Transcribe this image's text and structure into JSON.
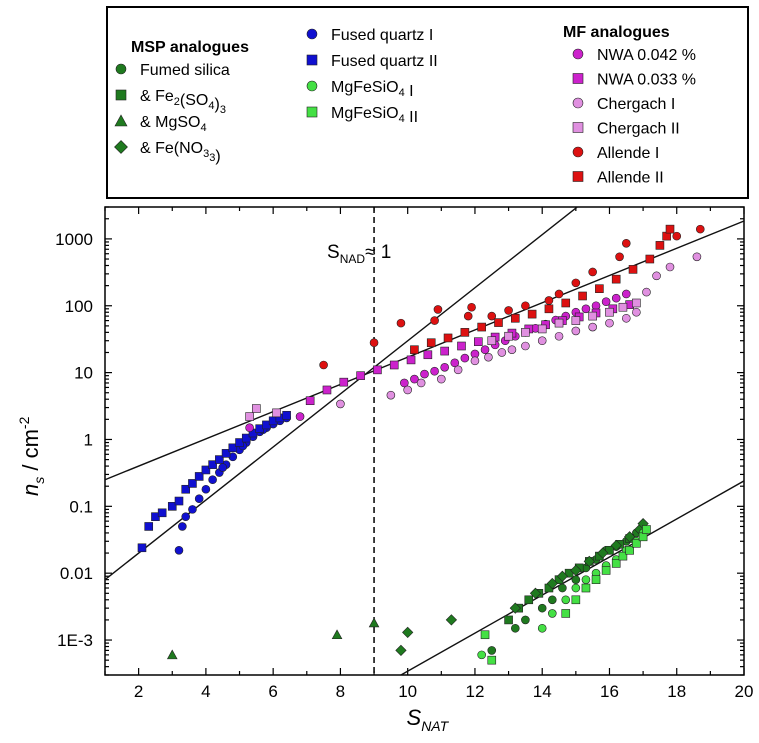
{
  "chart_data": {
    "type": "scatter",
    "xlabel": "S",
    "xlabel_sub": "NAT",
    "ylabel_main": "n",
    "ylabel_sub": "s",
    "ylabel_unit": " / cm",
    "ylabel_sup": "-2",
    "xlim": [
      1,
      20
    ],
    "ylim": [
      0.0003,
      3000
    ],
    "y_scale": "log",
    "x_ticks": [
      2,
      4,
      6,
      8,
      10,
      12,
      14,
      16,
      18,
      20
    ],
    "y_ticks": [
      {
        "value": 1000,
        "label": "1000"
      },
      {
        "value": 100,
        "label": "100"
      },
      {
        "value": 10,
        "label": "10"
      },
      {
        "value": 1,
        "label": "1"
      },
      {
        "value": 0.1,
        "label": "0.1"
      },
      {
        "value": 0.01,
        "label": "0.01"
      },
      {
        "value": 0.001,
        "label": "1E-3"
      }
    ],
    "annotation": {
      "prefix": "S",
      "sub": "NAD",
      "suffix": "≈ 1",
      "x": 9
    },
    "fit_lines": [
      {
        "x": [
          1,
          16
        ],
        "y": [
          0.008,
          7200
        ]
      },
      {
        "x": [
          1,
          20
        ],
        "y": [
          0.25,
          1850
        ]
      },
      {
        "x": [
          9.8,
          20
        ],
        "y": [
          0.0003,
          0.24
        ]
      }
    ],
    "legend": {
      "groups": [
        {
          "title": "MSP analogues",
          "entries": [
            {
              "label": "Fumed silica",
              "marker": "circle",
              "color": "#1f7a1f"
            },
            {
              "label": "& Fe",
              "sub1": "2",
              "mid": "(SO",
              "sub2": "4",
              "end": ")",
              "sub3": "3",
              "marker": "square",
              "color": "#1f7a1f"
            },
            {
              "label": "& MgSO",
              "sub1": "4",
              "marker": "triangle",
              "color": "#1f7a1f"
            },
            {
              "label": "& Fe(NO",
              "sub1": "3",
              "end": ")",
              "sub2": "3",
              "marker": "diamond",
              "color": "#1f7a1f"
            }
          ]
        },
        {
          "title": "",
          "entries": [
            {
              "label": "Fused quartz I",
              "marker": "circle",
              "color": "#1010d0"
            },
            {
              "label": "Fused quartz II",
              "marker": "square",
              "color": "#1010d0"
            },
            {
              "label": "MgFeSiO",
              "sub1": "4",
              "end": " I",
              "marker": "circle",
              "color": "#44e044"
            },
            {
              "label": "MgFeSiO",
              "sub1": "4",
              "end": " II",
              "marker": "square",
              "color": "#44e044"
            }
          ]
        },
        {
          "title": "MF analogues",
          "entries": [
            {
              "label": "NWA 0.042 %",
              "marker": "circle",
              "color": "#cc22cc"
            },
            {
              "label": "NWA 0.033 %",
              "marker": "square",
              "color": "#cc22cc"
            },
            {
              "label": "Chergach I",
              "marker": "circle",
              "color": "#e090e0"
            },
            {
              "label": "Chergach II",
              "marker": "square",
              "color": "#e090e0"
            },
            {
              "label": "Allende I",
              "marker": "circle",
              "color": "#dd1111"
            },
            {
              "label": "Allende II",
              "marker": "square",
              "color": "#dd1111"
            }
          ]
        }
      ]
    },
    "series": [
      {
        "marker": "circle",
        "color": "#1010d0",
        "points": [
          [
            3.2,
            0.022
          ],
          [
            3.3,
            0.05
          ],
          [
            3.4,
            0.07
          ],
          [
            3.6,
            0.09
          ],
          [
            3.8,
            0.13
          ],
          [
            4.0,
            0.18
          ],
          [
            4.2,
            0.25
          ],
          [
            4.4,
            0.32
          ],
          [
            4.6,
            0.42
          ],
          [
            4.8,
            0.55
          ],
          [
            5.0,
            0.7
          ],
          [
            5.2,
            0.9
          ],
          [
            5.4,
            1.1
          ],
          [
            5.6,
            1.3
          ],
          [
            5.8,
            1.5
          ],
          [
            6.0,
            1.7
          ],
          [
            6.2,
            1.9
          ],
          [
            6.4,
            2.1
          ],
          [
            4.5,
            0.38
          ],
          [
            5.1,
            0.8
          ],
          [
            5.7,
            1.4
          ]
        ]
      },
      {
        "marker": "square",
        "color": "#1010d0",
        "points": [
          [
            2.1,
            0.024
          ],
          [
            2.3,
            0.05
          ],
          [
            2.5,
            0.07
          ],
          [
            2.7,
            0.08
          ],
          [
            3.0,
            0.1
          ],
          [
            3.2,
            0.12
          ],
          [
            3.4,
            0.18
          ],
          [
            3.6,
            0.22
          ],
          [
            3.8,
            0.28
          ],
          [
            4.0,
            0.35
          ],
          [
            4.2,
            0.42
          ],
          [
            4.4,
            0.5
          ],
          [
            4.6,
            0.62
          ],
          [
            4.8,
            0.75
          ],
          [
            5.0,
            0.9
          ],
          [
            5.2,
            1.05
          ],
          [
            5.4,
            1.25
          ],
          [
            5.6,
            1.45
          ],
          [
            5.8,
            1.65
          ],
          [
            6.0,
            1.9
          ],
          [
            6.2,
            2.1
          ],
          [
            6.4,
            2.3
          ]
        ]
      },
      {
        "marker": "circle",
        "color": "#cc22cc",
        "points": [
          [
            5.3,
            1.5
          ],
          [
            6.8,
            2.2
          ],
          [
            9.9,
            7.0
          ],
          [
            10.2,
            8.0
          ],
          [
            10.5,
            9.5
          ],
          [
            10.8,
            10.5
          ],
          [
            11.1,
            12.0
          ],
          [
            11.4,
            14.0
          ],
          [
            11.7,
            16.5
          ],
          [
            12.0,
            19.0
          ],
          [
            12.3,
            22.0
          ],
          [
            12.6,
            26.0
          ],
          [
            12.9,
            30.0
          ],
          [
            13.2,
            35.0
          ],
          [
            13.5,
            40.0
          ],
          [
            13.8,
            46.0
          ],
          [
            14.1,
            53.0
          ],
          [
            14.4,
            61.0
          ],
          [
            14.7,
            70.0
          ],
          [
            15.0,
            80.0
          ],
          [
            15.3,
            90.0
          ],
          [
            15.6,
            100.0
          ],
          [
            15.9,
            115.0
          ],
          [
            16.2,
            130.0
          ],
          [
            16.5,
            150.0
          ]
        ]
      },
      {
        "marker": "square",
        "color": "#cc22cc",
        "points": [
          [
            7.1,
            3.8
          ],
          [
            7.6,
            5.5
          ],
          [
            8.1,
            7.2
          ],
          [
            8.6,
            9.0
          ],
          [
            9.1,
            11.0
          ],
          [
            9.6,
            13.0
          ],
          [
            10.1,
            15.5
          ],
          [
            10.6,
            18.5
          ],
          [
            11.1,
            21.0
          ],
          [
            11.6,
            25.0
          ],
          [
            12.1,
            29.0
          ],
          [
            12.6,
            34.0
          ],
          [
            13.1,
            39.0
          ],
          [
            13.6,
            45.0
          ],
          [
            14.1,
            52.0
          ],
          [
            14.6,
            60.0
          ],
          [
            15.1,
            68.0
          ],
          [
            15.6,
            78.0
          ],
          [
            16.1,
            90.0
          ],
          [
            16.6,
            104.0
          ]
        ]
      },
      {
        "marker": "circle",
        "color": "#e090e0",
        "points": [
          [
            8.0,
            3.4
          ],
          [
            9.5,
            4.6
          ],
          [
            10.0,
            5.5
          ],
          [
            10.4,
            7.0
          ],
          [
            11.0,
            8.0
          ],
          [
            11.5,
            11.0
          ],
          [
            12.0,
            15.0
          ],
          [
            12.4,
            17.0
          ],
          [
            12.8,
            20.0
          ],
          [
            13.1,
            22.0
          ],
          [
            13.5,
            25.0
          ],
          [
            14.0,
            30.0
          ],
          [
            14.5,
            35.0
          ],
          [
            15.0,
            42.0
          ],
          [
            15.5,
            48.0
          ],
          [
            16.0,
            55.0
          ],
          [
            16.5,
            65.0
          ],
          [
            16.8,
            80.0
          ],
          [
            17.1,
            160.0
          ],
          [
            17.4,
            280.0
          ],
          [
            17.8,
            380.0
          ],
          [
            18.6,
            540.0
          ]
        ]
      },
      {
        "marker": "square",
        "color": "#e090e0",
        "points": [
          [
            5.3,
            2.2
          ],
          [
            5.5,
            2.9
          ],
          [
            6.1,
            2.5
          ],
          [
            12.5,
            30.0
          ],
          [
            13.0,
            35.0
          ],
          [
            13.5,
            40.0
          ],
          [
            14.0,
            45.0
          ],
          [
            14.5,
            55.0
          ],
          [
            15.0,
            60.0
          ],
          [
            15.5,
            70.0
          ],
          [
            16.0,
            80.0
          ],
          [
            16.4,
            95.0
          ],
          [
            16.8,
            110.0
          ]
        ]
      },
      {
        "marker": "circle",
        "color": "#dd1111",
        "points": [
          [
            7.5,
            13.0
          ],
          [
            9.0,
            28.0
          ],
          [
            9.8,
            55.0
          ],
          [
            10.8,
            60.0
          ],
          [
            10.9,
            88.0
          ],
          [
            11.8,
            70.0
          ],
          [
            11.9,
            95.0
          ],
          [
            12.5,
            70.0
          ],
          [
            13.0,
            85.0
          ],
          [
            13.5,
            100.0
          ],
          [
            14.2,
            120.0
          ],
          [
            14.5,
            150.0
          ],
          [
            15.0,
            220.0
          ],
          [
            15.5,
            320.0
          ],
          [
            16.3,
            540.0
          ],
          [
            16.5,
            860.0
          ],
          [
            18.0,
            1100.0
          ],
          [
            18.7,
            1400.0
          ]
        ]
      },
      {
        "marker": "square",
        "color": "#dd1111",
        "points": [
          [
            10.2,
            22.0
          ],
          [
            10.7,
            28.0
          ],
          [
            11.2,
            33.0
          ],
          [
            11.7,
            40.0
          ],
          [
            12.2,
            48.0
          ],
          [
            12.7,
            56.0
          ],
          [
            13.2,
            65.0
          ],
          [
            13.7,
            75.0
          ],
          [
            14.2,
            90.0
          ],
          [
            14.7,
            110.0
          ],
          [
            15.2,
            140.0
          ],
          [
            15.7,
            180.0
          ],
          [
            16.2,
            250.0
          ],
          [
            16.7,
            350.0
          ],
          [
            17.2,
            500.0
          ],
          [
            17.5,
            800.0
          ],
          [
            17.7,
            1100.0
          ],
          [
            17.8,
            1400.0
          ]
        ]
      },
      {
        "marker": "circle",
        "color": "#1f7a1f",
        "points": [
          [
            12.5,
            0.0007
          ],
          [
            13.2,
            0.0015
          ],
          [
            13.5,
            0.002
          ],
          [
            14.0,
            0.003
          ],
          [
            14.3,
            0.004
          ],
          [
            14.6,
            0.006
          ],
          [
            15.0,
            0.008
          ],
          [
            15.3,
            0.012
          ],
          [
            15.6,
            0.016
          ],
          [
            15.9,
            0.022
          ],
          [
            16.2,
            0.025
          ],
          [
            16.5,
            0.03
          ],
          [
            16.8,
            0.04
          ]
        ]
      },
      {
        "marker": "square",
        "color": "#1f7a1f",
        "points": [
          [
            13.0,
            0.002
          ],
          [
            13.3,
            0.003
          ],
          [
            13.6,
            0.004
          ],
          [
            13.9,
            0.005
          ],
          [
            14.2,
            0.006
          ],
          [
            14.5,
            0.008
          ],
          [
            14.8,
            0.01
          ],
          [
            15.1,
            0.012
          ],
          [
            15.4,
            0.015
          ],
          [
            15.7,
            0.018
          ],
          [
            16.0,
            0.022
          ],
          [
            16.3,
            0.027
          ],
          [
            16.6,
            0.033
          ]
        ]
      },
      {
        "marker": "triangle",
        "color": "#1f7a1f",
        "points": [
          [
            3.0,
            0.0006
          ],
          [
            7.9,
            0.0012
          ],
          [
            9.0,
            0.0018
          ]
        ]
      },
      {
        "marker": "diamond",
        "color": "#1f7a1f",
        "points": [
          [
            9.8,
            0.0007
          ],
          [
            10.0,
            0.0013
          ],
          [
            11.3,
            0.002
          ],
          [
            13.2,
            0.003
          ],
          [
            13.8,
            0.005
          ],
          [
            14.3,
            0.007
          ],
          [
            14.6,
            0.009
          ],
          [
            15.0,
            0.011
          ],
          [
            15.4,
            0.015
          ],
          [
            15.8,
            0.02
          ],
          [
            16.2,
            0.026
          ],
          [
            16.6,
            0.035
          ],
          [
            16.9,
            0.045
          ],
          [
            17.0,
            0.055
          ]
        ]
      },
      {
        "marker": "circle",
        "color": "#44e044",
        "points": [
          [
            12.2,
            0.0006
          ],
          [
            14.0,
            0.0015
          ],
          [
            14.3,
            0.0025
          ],
          [
            14.7,
            0.004
          ],
          [
            15.0,
            0.006
          ],
          [
            15.3,
            0.008
          ],
          [
            15.6,
            0.01
          ],
          [
            15.9,
            0.013
          ],
          [
            16.2,
            0.016
          ],
          [
            16.5,
            0.022
          ],
          [
            16.8,
            0.03
          ],
          [
            17.0,
            0.04
          ]
        ]
      },
      {
        "marker": "square",
        "color": "#44e044",
        "points": [
          [
            12.3,
            0.0012
          ],
          [
            12.5,
            0.0005
          ],
          [
            14.7,
            0.0025
          ],
          [
            15.0,
            0.004
          ],
          [
            15.3,
            0.006
          ],
          [
            15.6,
            0.008
          ],
          [
            15.9,
            0.011
          ],
          [
            16.2,
            0.014
          ],
          [
            16.4,
            0.018
          ],
          [
            16.6,
            0.022
          ],
          [
            16.8,
            0.028
          ],
          [
            17.0,
            0.035
          ],
          [
            17.1,
            0.045
          ]
        ]
      }
    ]
  }
}
